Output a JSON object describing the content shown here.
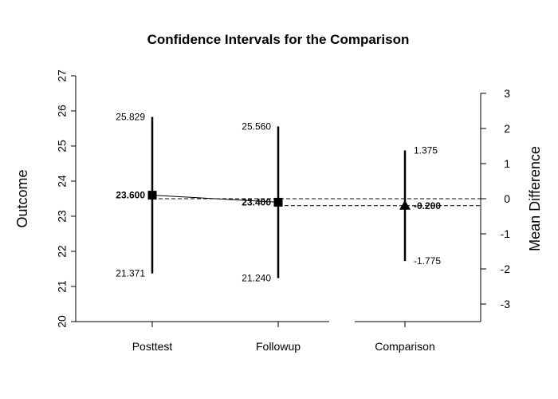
{
  "chart_data": {
    "type": "confidence-interval",
    "title": "Confidence Intervals for the Comparison",
    "ylabel_left": "Outcome",
    "ylabel_right": "Mean Difference",
    "left_axis": {
      "range": [
        20,
        27
      ],
      "ticks": [
        "20",
        "21",
        "22",
        "23",
        "24",
        "25",
        "26",
        "27"
      ]
    },
    "right_axis": {
      "range": [
        -3.5,
        3.5
      ],
      "ticks": [
        "-3",
        "-2",
        "-1",
        "0",
        "1",
        "2",
        "3"
      ]
    },
    "groups": [
      {
        "label": "Posttest",
        "mean": 23.6,
        "lower": 21.371,
        "upper": 25.829,
        "mean_label": "23.600",
        "lower_label": "21.371",
        "upper_label": "25.829",
        "marker": "square"
      },
      {
        "label": "Followup",
        "mean": 23.4,
        "lower": 21.24,
        "upper": 25.56,
        "mean_label": "23.400",
        "lower_label": "21.240",
        "upper_label": "25.560",
        "marker": "square"
      }
    ],
    "comparison": {
      "label": "Comparison",
      "diff": -0.2,
      "lower": -1.775,
      "upper": 1.375,
      "diff_label": "-0.200",
      "lower_label": "-1.775",
      "upper_label": "1.375",
      "marker": "triangle"
    },
    "reference_lines": "dashed at mean difference 0 and -0.200"
  }
}
